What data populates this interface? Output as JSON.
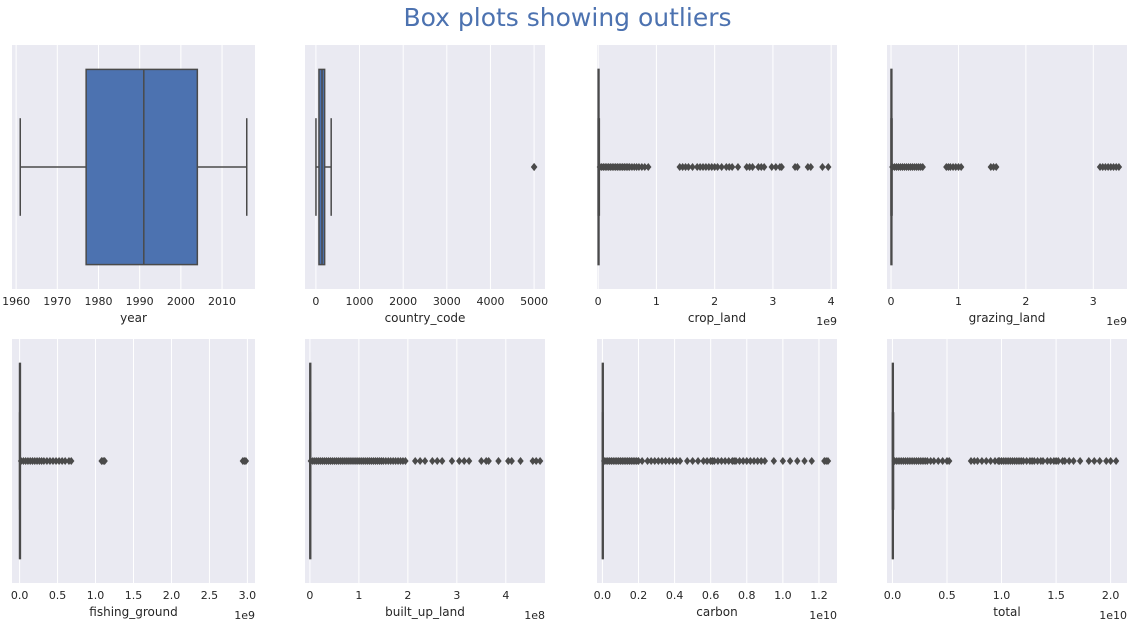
{
  "title": "Box plots showing outliers",
  "title_color": "#4c72b0",
  "colors": {
    "panel_bg": "#eaeaf2",
    "grid": "#ffffff",
    "box_fill": "#4c72b0",
    "line": "#4a4a4a",
    "text": "#262626"
  },
  "chart_data": [
    {
      "type": "box",
      "xlabel": "year",
      "offset": "",
      "xlim": [
        1959,
        2018
      ],
      "ticks": [
        1960,
        1970,
        1980,
        1990,
        2000,
        2010
      ],
      "tick_labels": [
        "1960",
        "1970",
        "1980",
        "1990",
        "2000",
        "2010"
      ],
      "whisker_low": 1961,
      "q1": 1977,
      "median": 1991,
      "q3": 2004,
      "whisker_high": 2016,
      "outliers": []
    },
    {
      "type": "box",
      "xlabel": "country_code",
      "offset": "",
      "xlim": [
        -250,
        5250
      ],
      "ticks": [
        0,
        1000,
        2000,
        3000,
        4000,
        5000
      ],
      "tick_labels": [
        "0",
        "1000",
        "2000",
        "3000",
        "4000",
        "5000"
      ],
      "whisker_low": 1,
      "q1": 70,
      "median": 140,
      "q3": 200,
      "whisker_high": 350,
      "outliers": [
        5000,
        5001
      ]
    },
    {
      "type": "box",
      "xlabel": "crop_land",
      "offset": "1e9",
      "xlim": [
        -0.02,
        4.1
      ],
      "ticks": [
        0,
        1,
        2,
        3,
        4
      ],
      "tick_labels": [
        "0",
        "1",
        "2",
        "3",
        "4"
      ],
      "whisker_low": 0,
      "q1": 0.0,
      "median": 0.003,
      "q3": 0.008,
      "whisker_high": 0.02,
      "outliers": [
        0.03,
        0.06,
        0.09,
        0.12,
        0.15,
        0.18,
        0.21,
        0.24,
        0.27,
        0.3,
        0.33,
        0.36,
        0.39,
        0.42,
        0.45,
        0.48,
        0.51,
        0.54,
        0.58,
        0.62,
        0.66,
        0.7,
        0.75,
        0.8,
        0.86,
        1.4,
        1.45,
        1.5,
        1.55,
        1.62,
        1.7,
        1.75,
        1.8,
        1.85,
        1.9,
        1.95,
        2.0,
        2.05,
        2.12,
        2.2,
        2.25,
        2.3,
        2.4,
        2.55,
        2.6,
        2.65,
        2.75,
        2.8,
        2.85,
        2.98,
        3.05,
        3.12,
        3.15,
        3.38,
        3.42,
        3.6,
        3.65,
        3.85,
        3.95
      ]
    },
    {
      "type": "box",
      "xlabel": "grazing_land",
      "offset": "1e9",
      "xlim": [
        -0.06,
        3.5
      ],
      "ticks": [
        0,
        1,
        2,
        3
      ],
      "tick_labels": [
        "0",
        "1",
        "2",
        "3"
      ],
      "whisker_low": 0,
      "q1": 0.0,
      "median": 0.002,
      "q3": 0.006,
      "whisker_high": 0.015,
      "outliers": [
        0.02,
        0.05,
        0.08,
        0.11,
        0.14,
        0.17,
        0.2,
        0.23,
        0.26,
        0.29,
        0.32,
        0.35,
        0.38,
        0.41,
        0.44,
        0.47,
        0.82,
        0.85,
        0.88,
        0.92,
        0.96,
        1.0,
        1.04,
        1.48,
        1.52,
        1.56,
        3.1,
        3.14,
        3.18,
        3.22,
        3.26,
        3.3,
        3.34,
        3.38
      ]
    },
    {
      "type": "box",
      "xlabel": "fishing_ground",
      "offset": "1e9",
      "xlim": [
        -0.1,
        3.1
      ],
      "ticks": [
        0,
        0.5,
        1,
        1.5,
        2,
        2.5,
        3
      ],
      "tick_labels": [
        "0.0",
        "0.5",
        "1.0",
        "1.5",
        "2.0",
        "2.5",
        "3.0"
      ],
      "whisker_low": 0,
      "q1": 0.0,
      "median": 0.001,
      "q3": 0.003,
      "whisker_high": 0.008,
      "outliers": [
        0.02,
        0.05,
        0.08,
        0.11,
        0.14,
        0.17,
        0.2,
        0.23,
        0.26,
        0.29,
        0.32,
        0.36,
        0.4,
        0.44,
        0.48,
        0.52,
        0.56,
        0.6,
        0.65,
        0.68,
        1.08,
        1.1,
        1.12,
        2.94,
        2.96,
        2.98
      ]
    },
    {
      "type": "box",
      "xlabel": "built_up_land",
      "offset": "1e8",
      "xlim": [
        -0.1,
        4.8
      ],
      "ticks": [
        0,
        1,
        2,
        3,
        4
      ],
      "tick_labels": [
        "0",
        "1",
        "2",
        "3",
        "4"
      ],
      "whisker_low": 0,
      "q1": 0.0,
      "median": 0.002,
      "q3": 0.005,
      "whisker_high": 0.012,
      "outliers": [
        0.02,
        0.06,
        0.1,
        0.14,
        0.18,
        0.22,
        0.26,
        0.3,
        0.34,
        0.38,
        0.42,
        0.46,
        0.5,
        0.54,
        0.58,
        0.62,
        0.66,
        0.7,
        0.74,
        0.78,
        0.82,
        0.86,
        0.9,
        0.94,
        0.98,
        1.02,
        1.06,
        1.1,
        1.14,
        1.18,
        1.22,
        1.26,
        1.3,
        1.34,
        1.38,
        1.42,
        1.46,
        1.5,
        1.55,
        1.6,
        1.65,
        1.7,
        1.75,
        1.8,
        1.85,
        1.9,
        1.95,
        2.15,
        2.25,
        2.35,
        2.5,
        2.6,
        2.7,
        2.9,
        3.05,
        3.15,
        3.25,
        3.5,
        3.6,
        3.65,
        3.85,
        4.05,
        4.12,
        4.3,
        4.55,
        4.62,
        4.7
      ]
    },
    {
      "type": "box",
      "xlabel": "carbon",
      "offset": "1e10",
      "xlim": [
        -0.03,
        1.3
      ],
      "ticks": [
        0,
        0.2,
        0.4,
        0.6,
        0.8,
        1.0,
        1.2
      ],
      "tick_labels": [
        "0.0",
        "0.2",
        "0.4",
        "0.6",
        "0.8",
        "1.0",
        "1.2"
      ],
      "whisker_low": 0,
      "q1": 0.0,
      "median": 0.001,
      "q3": 0.002,
      "whisker_high": 0.004,
      "outliers": [
        0.01,
        0.02,
        0.03,
        0.04,
        0.05,
        0.06,
        0.07,
        0.08,
        0.09,
        0.1,
        0.11,
        0.12,
        0.13,
        0.14,
        0.15,
        0.16,
        0.17,
        0.18,
        0.19,
        0.2,
        0.22,
        0.25,
        0.27,
        0.29,
        0.31,
        0.33,
        0.35,
        0.37,
        0.39,
        0.41,
        0.43,
        0.47,
        0.5,
        0.53,
        0.56,
        0.58,
        0.6,
        0.61,
        0.62,
        0.64,
        0.66,
        0.68,
        0.7,
        0.72,
        0.73,
        0.74,
        0.76,
        0.78,
        0.8,
        0.82,
        0.84,
        0.86,
        0.88,
        0.9,
        0.95,
        1.0,
        1.04,
        1.08,
        1.12,
        1.16,
        1.23,
        1.24,
        1.25
      ]
    },
    {
      "type": "box",
      "xlabel": "total",
      "offset": "1e10",
      "xlim": [
        -0.05,
        2.15
      ],
      "ticks": [
        0,
        0.5,
        1.0,
        1.5,
        2.0
      ],
      "tick_labels": [
        "0.0",
        "0.5",
        "1.0",
        "1.5",
        "2.0"
      ],
      "whisker_low": 0,
      "q1": 0.0,
      "median": 0.002,
      "q3": 0.004,
      "whisker_high": 0.01,
      "outliers": [
        0.02,
        0.04,
        0.06,
        0.08,
        0.1,
        0.12,
        0.14,
        0.16,
        0.18,
        0.2,
        0.22,
        0.24,
        0.26,
        0.28,
        0.3,
        0.32,
        0.35,
        0.38,
        0.42,
        0.46,
        0.5,
        0.52,
        0.72,
        0.75,
        0.78,
        0.82,
        0.86,
        0.9,
        0.94,
        0.97,
        0.98,
        1.0,
        1.02,
        1.04,
        1.06,
        1.08,
        1.1,
        1.12,
        1.14,
        1.16,
        1.18,
        1.2,
        1.23,
        1.26,
        1.28,
        1.3,
        1.33,
        1.36,
        1.38,
        1.42,
        1.45,
        1.48,
        1.5,
        1.52,
        1.56,
        1.58,
        1.62,
        1.66,
        1.72,
        1.8,
        1.85,
        1.9,
        1.96,
        2.0,
        2.05
      ]
    }
  ]
}
